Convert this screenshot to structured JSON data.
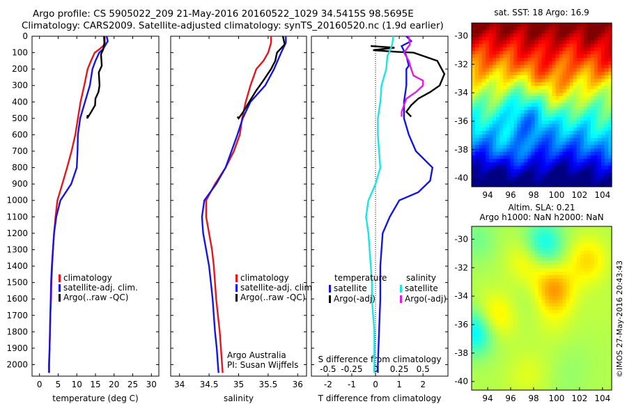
{
  "header": {
    "line1": "Argo profile: CS 5905022_209 21-May-2016 20160522_1029 34.5415S 98.5695E",
    "line2": "Climatology: CARS2009. Satellite-adjusted climatology: synTS_20160520.nc (1.9d earlier)"
  },
  "colors": {
    "climatology": "#e8141b",
    "satellite": "#1414e6",
    "argo": "#000000",
    "sat_salinity": "#19e5e5",
    "argo_salinity": "#e519e5"
  },
  "chart_data": [
    {
      "type": "line",
      "id": "temperature",
      "xlabel": "temperature (deg C)",
      "xlim": [
        -2,
        32
      ],
      "ylim": [
        2070,
        0
      ],
      "xticks": [
        0,
        5,
        10,
        15,
        20,
        25,
        30
      ],
      "yticks": [
        0,
        100,
        200,
        300,
        400,
        500,
        600,
        700,
        800,
        900,
        1000,
        1100,
        1200,
        1300,
        1400,
        1500,
        1600,
        1700,
        1800,
        1900,
        2000
      ],
      "legend": [
        "climatology",
        "satellite-adj. clim.",
        "Argo(..raw -QC)"
      ],
      "series": [
        {
          "name": "climatology",
          "color": "climatology",
          "points": [
            [
              17.5,
              0
            ],
            [
              17.5,
              50
            ],
            [
              16,
              80
            ],
            [
              14.8,
              100
            ],
            [
              13.8,
              150
            ],
            [
              12.9,
              200
            ],
            [
              12,
              300
            ],
            [
              11,
              400
            ],
            [
              10.3,
              500
            ],
            [
              9.6,
              600
            ],
            [
              8.6,
              700
            ],
            [
              7.4,
              800
            ],
            [
              6.1,
              900
            ],
            [
              4.8,
              1000
            ],
            [
              4.3,
              1100
            ],
            [
              3.9,
              1200
            ],
            [
              3.6,
              1300
            ],
            [
              3.4,
              1400
            ],
            [
              3.2,
              1500
            ],
            [
              3.1,
              1600
            ],
            [
              2.9,
              1700
            ],
            [
              2.8,
              1800
            ],
            [
              2.7,
              1900
            ],
            [
              2.5,
              2000
            ],
            [
              2.5,
              2050
            ]
          ]
        },
        {
          "name": "satellite-adj. clim.",
          "color": "satellite",
          "points": [
            [
              18,
              0
            ],
            [
              18.3,
              30
            ],
            [
              17,
              80
            ],
            [
              16,
              100
            ],
            [
              15,
              150
            ],
            [
              14.2,
              200
            ],
            [
              13.5,
              300
            ],
            [
              12.2,
              400
            ],
            [
              10.9,
              500
            ],
            [
              10.3,
              600
            ],
            [
              10.2,
              700
            ],
            [
              10,
              800
            ],
            [
              8.5,
              900
            ],
            [
              5.6,
              1000
            ],
            [
              4.5,
              1100
            ],
            [
              3.9,
              1200
            ],
            [
              3.6,
              1300
            ],
            [
              3.3,
              1400
            ],
            [
              3.1,
              1500
            ],
            [
              3,
              1600
            ],
            [
              2.9,
              1700
            ],
            [
              2.8,
              1800
            ],
            [
              2.7,
              1900
            ],
            [
              2.6,
              2000
            ],
            [
              2.6,
              2050
            ]
          ]
        },
        {
          "name": "Argo(..raw -QC)",
          "color": "argo",
          "points": [
            [
              17.3,
              0
            ],
            [
              17.4,
              40
            ],
            [
              17.1,
              80
            ],
            [
              16.5,
              110
            ],
            [
              16.7,
              180
            ],
            [
              15.9,
              220
            ],
            [
              16.1,
              300
            ],
            [
              15.8,
              340
            ],
            [
              15,
              380
            ],
            [
              14.9,
              420
            ],
            [
              13.9,
              460
            ],
            [
              12.8,
              500
            ],
            [
              12.9,
              480
            ]
          ]
        }
      ]
    },
    {
      "type": "line",
      "id": "salinity",
      "xlabel": "salinity",
      "xlim": [
        33.85,
        36.15
      ],
      "ylim": [
        2070,
        0
      ],
      "xticks": [
        34,
        34.5,
        35,
        35.5,
        36
      ],
      "xticklabels": [
        "34",
        "34.5",
        "35",
        "35.5",
        "36"
      ],
      "legend": [
        "climatology",
        "satellite-adj. clim.",
        "Argo(..raw -QC)"
      ],
      "annotation": [
        "Argo Australia",
        "PI: Susan Wijffels"
      ],
      "series": [
        {
          "name": "climatology",
          "color": "climatology",
          "points": [
            [
              35.55,
              0
            ],
            [
              35.55,
              40
            ],
            [
              35.5,
              100
            ],
            [
              35.42,
              150
            ],
            [
              35.3,
              200
            ],
            [
              35.2,
              300
            ],
            [
              35.12,
              400
            ],
            [
              35.06,
              500
            ],
            [
              35.02,
              600
            ],
            [
              34.92,
              700
            ],
            [
              34.78,
              800
            ],
            [
              34.6,
              900
            ],
            [
              34.45,
              1000
            ],
            [
              34.45,
              1100
            ],
            [
              34.5,
              1200
            ],
            [
              34.55,
              1300
            ],
            [
              34.58,
              1400
            ],
            [
              34.6,
              1500
            ],
            [
              34.62,
              1600
            ],
            [
              34.65,
              1700
            ],
            [
              34.68,
              1800
            ],
            [
              34.7,
              1900
            ],
            [
              34.72,
              2000
            ],
            [
              34.73,
              2050
            ]
          ]
        },
        {
          "name": "satellite-adj. clim.",
          "color": "satellite",
          "points": [
            [
              35.8,
              0
            ],
            [
              35.8,
              40
            ],
            [
              35.72,
              100
            ],
            [
              35.6,
              200
            ],
            [
              35.45,
              300
            ],
            [
              35.2,
              400
            ],
            [
              35.07,
              500
            ],
            [
              34.98,
              600
            ],
            [
              34.88,
              700
            ],
            [
              34.78,
              800
            ],
            [
              34.62,
              900
            ],
            [
              34.42,
              1000
            ],
            [
              34.38,
              1100
            ],
            [
              34.4,
              1200
            ],
            [
              34.45,
              1300
            ],
            [
              34.5,
              1400
            ],
            [
              34.53,
              1500
            ],
            [
              34.56,
              1600
            ],
            [
              34.58,
              1700
            ],
            [
              34.6,
              1800
            ],
            [
              34.63,
              1900
            ],
            [
              34.65,
              2000
            ],
            [
              34.66,
              2050
            ]
          ]
        },
        {
          "name": "Argo(..raw -QC)",
          "color": "argo",
          "points": [
            [
              35.75,
              0
            ],
            [
              35.78,
              50
            ],
            [
              35.65,
              100
            ],
            [
              35.62,
              150
            ],
            [
              35.55,
              200
            ],
            [
              35.4,
              280
            ],
            [
              35.3,
              330
            ],
            [
              35.18,
              400
            ],
            [
              35.08,
              460
            ],
            [
              35,
              500
            ],
            [
              34.98,
              490
            ]
          ]
        }
      ]
    },
    {
      "type": "line",
      "id": "difference",
      "xlabel": "T difference from climatology",
      "x2label": "S difference from climatology",
      "xlim": [
        -2.7,
        3.05
      ],
      "ylim": [
        2070,
        0
      ],
      "xticks": [
        -2,
        -1,
        0,
        1,
        2
      ],
      "x2ticks": [
        -0.5,
        -0.25,
        0,
        0.25,
        0.5
      ],
      "x2ticklabels": [
        "-0.5",
        "-0.25",
        "0",
        "0.25",
        "0.5"
      ],
      "legend_headers": [
        "temperature",
        "salinity"
      ],
      "legend": [
        {
          "label": "satellite",
          "color": "satellite"
        },
        {
          "label": "Argo(-adj)",
          "color": "argo"
        },
        {
          "label": "satellite",
          "color": "sat_salinity"
        },
        {
          "label": "Argo(-adj)",
          "color": "argo_salinity"
        }
      ],
      "series": [
        {
          "name": "T satellite",
          "color": "satellite",
          "points": [
            [
              1.3,
              0
            ],
            [
              1.5,
              30
            ],
            [
              1.1,
              60
            ],
            [
              1.2,
              90
            ],
            [
              1.3,
              120
            ],
            [
              1.4,
              180
            ],
            [
              1.3,
              200
            ],
            [
              1.3,
              300
            ],
            [
              1.2,
              400
            ],
            [
              1.2,
              500
            ],
            [
              1.4,
              600
            ],
            [
              1.7,
              700
            ],
            [
              2.4,
              800
            ],
            [
              2.3,
              880
            ],
            [
              1.8,
              950
            ],
            [
              1,
              1000
            ],
            [
              0.6,
              1100
            ],
            [
              0.3,
              1200
            ],
            [
              0.2,
              1400
            ],
            [
              0.2,
              1600
            ],
            [
              0.15,
              1800
            ],
            [
              0.1,
              2000
            ],
            [
              0.1,
              2050
            ]
          ]
        },
        {
          "name": "T Argo",
          "color": "argo",
          "points": [
            [
              -0.2,
              60
            ],
            [
              0.8,
              70
            ],
            [
              -0.1,
              85
            ],
            [
              0.9,
              95
            ],
            [
              1.6,
              100
            ],
            [
              2,
              120
            ],
            [
              2.6,
              150
            ],
            [
              2.9,
              230
            ],
            [
              2.7,
              300
            ],
            [
              2.3,
              340
            ],
            [
              1.8,
              380
            ],
            [
              1.5,
              420
            ],
            [
              1.3,
              460
            ],
            [
              1.5,
              490
            ]
          ]
        },
        {
          "name": "S satellite",
          "color": "sat_salinity",
          "points": [
            [
              0.75,
              0
            ],
            [
              0.7,
              50
            ],
            [
              0.6,
              90
            ],
            [
              0.5,
              120
            ],
            [
              0.45,
              200
            ],
            [
              0.25,
              300
            ],
            [
              0.2,
              400
            ],
            [
              0.1,
              500
            ],
            [
              0.1,
              600
            ],
            [
              0.15,
              700
            ],
            [
              0.2,
              800
            ],
            [
              0,
              900
            ],
            [
              -0.3,
              1000
            ],
            [
              -0.4,
              1100
            ],
            [
              -0.3,
              1200
            ],
            [
              -0.25,
              1300
            ],
            [
              -0.2,
              1400
            ],
            [
              -0.15,
              1500
            ],
            [
              -0.15,
              1600
            ],
            [
              -0.1,
              1700
            ],
            [
              -0.05,
              1800
            ],
            [
              -0.05,
              1900
            ],
            [
              -0.05,
              2000
            ],
            [
              -0.05,
              2050
            ]
          ]
        },
        {
          "name": "S Argo",
          "color": "argo_salinity",
          "points": [
            [
              1.4,
              0
            ],
            [
              1.45,
              50
            ],
            [
              1.2,
              100
            ],
            [
              1.4,
              150
            ],
            [
              1.5,
              200
            ],
            [
              1.6,
              240
            ],
            [
              2,
              270
            ],
            [
              2,
              300
            ],
            [
              1.7,
              340
            ],
            [
              1.3,
              380
            ],
            [
              1.2,
              420
            ],
            [
              1.1,
              460
            ],
            [
              1.1,
              490
            ]
          ]
        }
      ]
    },
    {
      "type": "heatmap",
      "id": "sst_map",
      "title": "sat. SST: 18 Argo: 16.9",
      "xticks": [
        94,
        96,
        98,
        100,
        102,
        104
      ],
      "yticks": [
        -30,
        -32,
        -34,
        -36,
        -38,
        -40
      ]
    },
    {
      "type": "heatmap",
      "id": "sla_map",
      "title_lines": [
        "Altim. SLA: 0.21",
        "Argo h1000: NaN h2000: NaN"
      ],
      "xticks": [
        94,
        96,
        98,
        100,
        102,
        104
      ],
      "yticks": [
        -30,
        -32,
        -34,
        -36,
        -38,
        -40
      ],
      "side_label": "©IMOS 27-May-2016 20:43:43"
    }
  ]
}
